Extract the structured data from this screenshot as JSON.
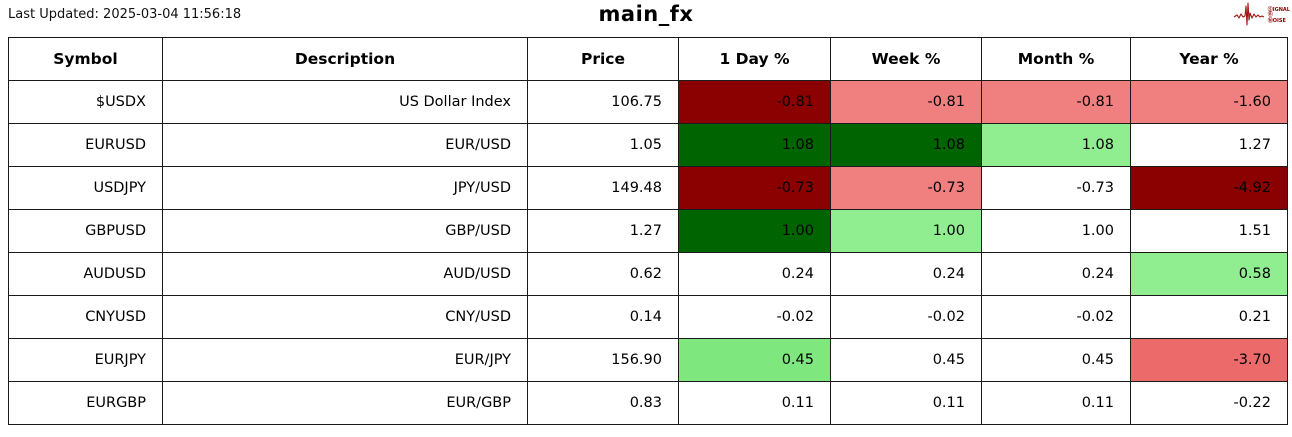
{
  "header": {
    "last_updated": "Last Updated: 2025-03-04 11:56:18",
    "title": "main_fx",
    "logo": {
      "icon": "waveform-icon",
      "line1": "ⓈIGNAL",
      "line2": "Ⓑ",
      "line3": "ⓃOISE",
      "color": "#8b0000"
    }
  },
  "table": {
    "columns": [
      "Symbol",
      "Description",
      "Price",
      "1 Day %",
      "Week %",
      "Month %",
      "Year %"
    ],
    "rows": [
      {
        "symbol": "$USDX",
        "description": "US Dollar Index",
        "price": "106.75",
        "pcts": [
          {
            "v": "-0.81",
            "bg": "#8b0000"
          },
          {
            "v": "-0.81",
            "bg": "#f08080"
          },
          {
            "v": "-0.81",
            "bg": "#f08080"
          },
          {
            "v": "-1.60",
            "bg": "#f08080"
          }
        ]
      },
      {
        "symbol": "EURUSD",
        "description": "EUR/USD",
        "price": "1.05",
        "pcts": [
          {
            "v": "1.08",
            "bg": "#006400"
          },
          {
            "v": "1.08",
            "bg": "#006400"
          },
          {
            "v": "1.08",
            "bg": "#90ee90"
          },
          {
            "v": "1.27",
            "bg": "#ffffff"
          }
        ]
      },
      {
        "symbol": "USDJPY",
        "description": "JPY/USD",
        "price": "149.48",
        "pcts": [
          {
            "v": "-0.73",
            "bg": "#8b0000"
          },
          {
            "v": "-0.73",
            "bg": "#f08080"
          },
          {
            "v": "-0.73",
            "bg": "#ffffff"
          },
          {
            "v": "-4.92",
            "bg": "#8b0000"
          }
        ]
      },
      {
        "symbol": "GBPUSD",
        "description": "GBP/USD",
        "price": "1.27",
        "pcts": [
          {
            "v": "1.00",
            "bg": "#006400"
          },
          {
            "v": "1.00",
            "bg": "#90ee90"
          },
          {
            "v": "1.00",
            "bg": "#ffffff"
          },
          {
            "v": "1.51",
            "bg": "#ffffff"
          }
        ]
      },
      {
        "symbol": "AUDUSD",
        "description": "AUD/USD",
        "price": "0.62",
        "pcts": [
          {
            "v": "0.24",
            "bg": "#ffffff"
          },
          {
            "v": "0.24",
            "bg": "#ffffff"
          },
          {
            "v": "0.24",
            "bg": "#ffffff"
          },
          {
            "v": "0.58",
            "bg": "#90ee90"
          }
        ]
      },
      {
        "symbol": "CNYUSD",
        "description": "CNY/USD",
        "price": "0.14",
        "pcts": [
          {
            "v": "-0.02",
            "bg": "#ffffff"
          },
          {
            "v": "-0.02",
            "bg": "#ffffff"
          },
          {
            "v": "-0.02",
            "bg": "#ffffff"
          },
          {
            "v": "0.21",
            "bg": "#ffffff"
          }
        ]
      },
      {
        "symbol": "EURJPY",
        "description": "EUR/JPY",
        "price": "156.90",
        "pcts": [
          {
            "v": "0.45",
            "bg": "#7ee87e"
          },
          {
            "v": "0.45",
            "bg": "#ffffff"
          },
          {
            "v": "0.45",
            "bg": "#ffffff"
          },
          {
            "v": "-3.70",
            "bg": "#ed6a6a"
          }
        ]
      },
      {
        "symbol": "EURGBP",
        "description": "EUR/GBP",
        "price": "0.83",
        "pcts": [
          {
            "v": "0.11",
            "bg": "#ffffff"
          },
          {
            "v": "0.11",
            "bg": "#ffffff"
          },
          {
            "v": "0.11",
            "bg": "#ffffff"
          },
          {
            "v": "-0.22",
            "bg": "#ffffff"
          }
        ]
      }
    ]
  },
  "chart_data": {
    "type": "table",
    "title": "main_fx",
    "last_updated": "2025-03-04 11:56:18",
    "columns": [
      "Symbol",
      "Description",
      "Price",
      "1 Day %",
      "Week %",
      "Month %",
      "Year %"
    ],
    "rows": [
      [
        "$USDX",
        "US Dollar Index",
        106.75,
        -0.81,
        -0.81,
        -0.81,
        -1.6
      ],
      [
        "EURUSD",
        "EUR/USD",
        1.05,
        1.08,
        1.08,
        1.08,
        1.27
      ],
      [
        "USDJPY",
        "JPY/USD",
        149.48,
        -0.73,
        -0.73,
        -0.73,
        -4.92
      ],
      [
        "GBPUSD",
        "GBP/USD",
        1.27,
        1.0,
        1.0,
        1.0,
        1.51
      ],
      [
        "AUDUSD",
        "AUD/USD",
        0.62,
        0.24,
        0.24,
        0.24,
        0.58
      ],
      [
        "CNYUSD",
        "CNY/USD",
        0.14,
        -0.02,
        -0.02,
        -0.02,
        0.21
      ],
      [
        "EURJPY",
        "EUR/JPY",
        156.9,
        0.45,
        0.45,
        0.45,
        -3.7
      ],
      [
        "EURGBP",
        "EUR/GBP",
        0.83,
        0.11,
        0.11,
        0.11,
        -0.22
      ]
    ],
    "layout_hints": {
      "pct_columns_conditional_formatting": "red-white-green heatmap per column",
      "colors": {
        "strong_negative": "#8b0000",
        "negative": "#f08080",
        "neutral": "#ffffff",
        "positive": "#90ee90",
        "strong_positive": "#006400"
      },
      "grid": true
    }
  }
}
